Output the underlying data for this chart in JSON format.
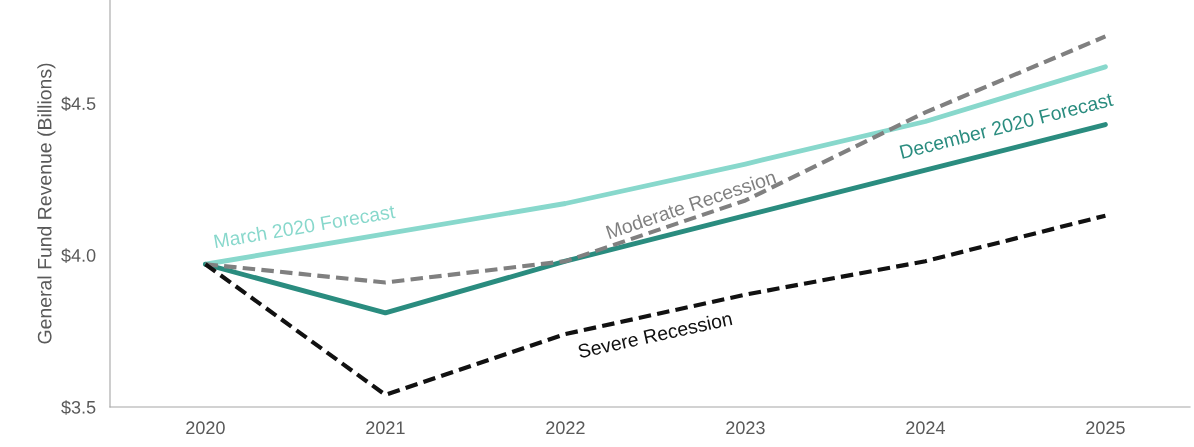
{
  "chart_data": {
    "type": "line",
    "ylabel": "General Fund Revenue (Billions)",
    "categories": [
      "2020",
      "2021",
      "2022",
      "2023",
      "2024",
      "2025"
    ],
    "ylim": [
      3.5,
      4.84
    ],
    "yticks": [
      {
        "value": 3.5,
        "label": "$3.5"
      },
      {
        "value": 4.0,
        "label": "$4.0"
      },
      {
        "value": 4.5,
        "label": "$4.5"
      }
    ],
    "grid": false,
    "legend": false,
    "marker": "none",
    "series": [
      {
        "name": "March 2020 Forecast",
        "color": "#88d8cc",
        "line_style": "solid",
        "values": [
          3.97,
          4.07,
          4.17,
          4.3,
          4.44,
          4.62
        ]
      },
      {
        "name": "December 2020 Forecast",
        "color": "#2a8c7f",
        "line_style": "solid",
        "values": [
          3.97,
          3.81,
          3.98,
          4.13,
          4.28,
          4.43
        ]
      },
      {
        "name": "Moderate Recession",
        "color": "#808080",
        "line_style": "dashed",
        "values": [
          3.97,
          3.91,
          3.98,
          4.18,
          4.47,
          4.72
        ]
      },
      {
        "name": "Severe Recession",
        "color": "#111111",
        "line_style": "dashed",
        "values": [
          3.97,
          3.54,
          3.74,
          3.87,
          3.98,
          4.13
        ]
      }
    ]
  }
}
